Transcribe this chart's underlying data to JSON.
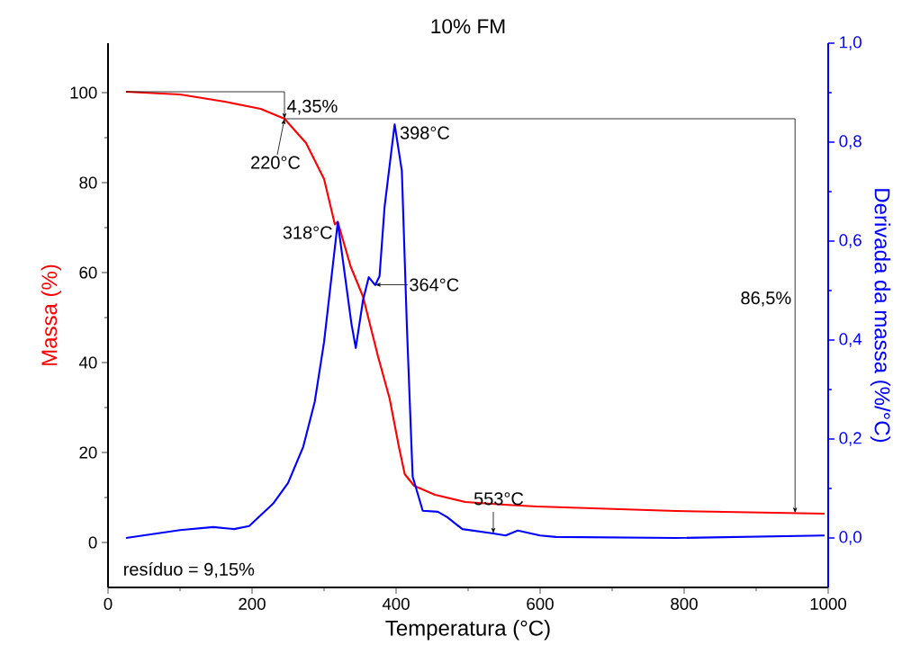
{
  "chart_data": {
    "type": "line",
    "title": "10% FM",
    "xlabel": "Temperatura (°C)",
    "ylabel": "Massa (%)",
    "y2label": "Derivada da massa (%/°C)",
    "xlim": [
      0,
      1000
    ],
    "xticks": [
      0,
      200,
      400,
      600,
      800,
      1000
    ],
    "ylim": [
      -10,
      111
    ],
    "yticks": [
      0,
      20,
      40,
      60,
      80,
      100
    ],
    "y2lim": [
      -0.1,
      1.0
    ],
    "y2ticks": [
      {
        "value": 0,
        "label": "0,0"
      },
      {
        "value": 0.2,
        "label": "0,2"
      },
      {
        "value": 0.4,
        "label": "0,4"
      },
      {
        "value": 0.6,
        "label": "0,6"
      },
      {
        "value": 0.8,
        "label": "0,8"
      },
      {
        "value": 1.0,
        "label": "1,0"
      }
    ],
    "series": [
      {
        "color": "#ff0000",
        "x": [
          25,
          100,
          162,
          212,
          245,
          275,
          300,
          315,
          319,
          337,
          354,
          375,
          391,
          404,
          412,
          425,
          454,
          496,
          550,
          595,
          788,
          995
        ],
        "values": [
          100.2,
          99.6,
          98,
          96.4,
          94.2,
          88.8,
          80.8,
          70.7,
          71.3,
          61.3,
          54.7,
          41.3,
          32,
          21.2,
          15.2,
          12.6,
          10.6,
          9,
          8.4,
          8.0,
          7.0,
          6.4
        ]
      },
      {
        "color": "#0000ff",
        "axis": "y2",
        "x": [
          25,
          100,
          146,
          175,
          196,
          229,
          250,
          271,
          287,
          300,
          319,
          338,
          344,
          354,
          362,
          371,
          377,
          384,
          398,
          408,
          415,
          423,
          437,
          458,
          471,
          492,
          535,
          552,
          569,
          600,
          622,
          788,
          995
        ],
        "values": [
          0.0,
          0.016,
          0.022,
          0.018,
          0.024,
          0.069,
          0.111,
          0.184,
          0.275,
          0.396,
          0.638,
          0.433,
          0.384,
          0.48,
          0.527,
          0.511,
          0.529,
          0.669,
          0.836,
          0.742,
          0.427,
          0.124,
          0.055,
          0.053,
          0.042,
          0.018,
          0.009,
          0.005,
          0.015,
          0.005,
          0.002,
          0.0,
          0.005
        ]
      }
    ],
    "annotations": [
      {
        "text": "4,35%",
        "x": 245,
        "y": 94.2
      },
      {
        "text": "220°C",
        "x": 245,
        "y": 94.2
      },
      "86,5%",
      {
        "text": "398°C",
        "x": 398,
        "y": 93.2
      },
      {
        "text": "318°C",
        "x": 319,
        "y": 71.3
      },
      {
        "text": "364°C",
        "x": 371,
        "y": 57.3
      },
      {
        "text": "553°C",
        "x": 535,
        "y": 2.0
      },
      "resíduo = 9,15%"
    ]
  }
}
